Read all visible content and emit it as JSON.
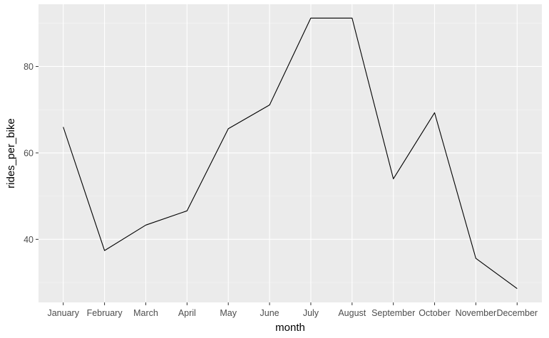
{
  "colors": {
    "panel": "#ebebeb",
    "grid_major": "#ffffff",
    "grid_minor": "#f5f5f5",
    "line": "#000000",
    "tick_text": "#4d4d4d",
    "tick_mark": "#333333"
  },
  "chart_data": {
    "type": "line",
    "title": "",
    "xlabel": "month",
    "ylabel": "rides_per_bike",
    "categories": [
      "January",
      "February",
      "March",
      "April",
      "May",
      "June",
      "July",
      "August",
      "September",
      "October",
      "November",
      "December"
    ],
    "series": [
      {
        "values": [
          66,
          37.4,
          43.3,
          46.6,
          65.6,
          71.1,
          91.2,
          91.2,
          54,
          69.3,
          35.6,
          28.6
        ]
      }
    ],
    "yticks": [
      40,
      60,
      80
    ],
    "ylim": [
      25.4,
      94.4
    ],
    "grid": true,
    "legend": "none"
  }
}
